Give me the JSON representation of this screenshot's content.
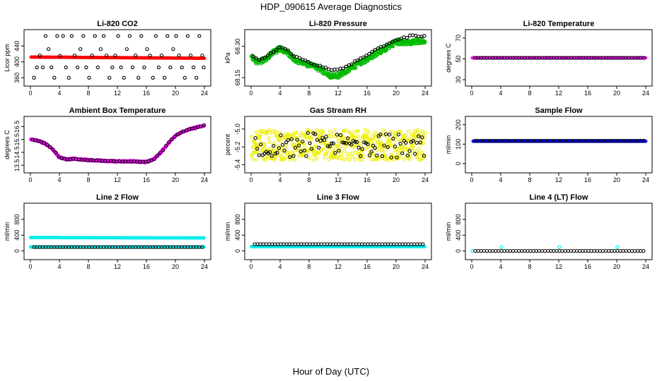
{
  "figure": {
    "title": "HDP_090615  Average Diagnostics",
    "xlabel": "Hour of Day (UTC)"
  },
  "chart_data": [
    {
      "type": "scatter",
      "title": "Li-820 CO2",
      "ylabel": "Licor ppm",
      "xlim": [
        0,
        24
      ],
      "ylim": [
        355,
        465
      ],
      "xticks": [
        0,
        4,
        8,
        12,
        16,
        20,
        24
      ],
      "xtick_labels": [
        "0",
        "4",
        "8",
        "12",
        "16",
        "20",
        "24"
      ],
      "yticks": [
        360,
        400,
        440
      ],
      "ytick_labels": [
        "360",
        "400",
        "440"
      ],
      "series": [
        {
          "name": "red",
          "color": "#ff0000",
          "filled": true,
          "kind": "linear",
          "x0": 0.1,
          "x1": 24,
          "step": 0.1,
          "y0": 412,
          "y1": 409
        },
        {
          "name": "black",
          "color": "#000000",
          "filled": false,
          "points": [
            [
              0.5,
              360
            ],
            [
              0.9,
              386
            ],
            [
              1.3,
              416
            ],
            [
              1.7,
              386
            ],
            [
              2.1,
              465
            ],
            [
              2.5,
              432
            ],
            [
              2.9,
              386
            ],
            [
              3.3,
              360
            ],
            [
              3.7,
              465
            ],
            [
              4.1,
              415
            ],
            [
              4.5,
              465
            ],
            [
              4.9,
              386
            ],
            [
              5.3,
              360
            ],
            [
              5.7,
              465
            ],
            [
              6.1,
              416
            ],
            [
              6.5,
              386
            ],
            [
              6.9,
              432
            ],
            [
              7.3,
              465
            ],
            [
              7.7,
              386
            ],
            [
              8.1,
              360
            ],
            [
              8.5,
              416
            ],
            [
              8.9,
              465
            ],
            [
              9.3,
              386
            ],
            [
              9.7,
              432
            ],
            [
              10.1,
              465
            ],
            [
              10.5,
              416
            ],
            [
              10.9,
              360
            ],
            [
              11.3,
              386
            ],
            [
              11.7,
              416
            ],
            [
              12.1,
              465
            ],
            [
              12.5,
              386
            ],
            [
              12.9,
              360
            ],
            [
              13.3,
              432
            ],
            [
              13.7,
              465
            ],
            [
              14.1,
              386
            ],
            [
              14.5,
              416
            ],
            [
              14.9,
              360
            ],
            [
              15.3,
              465
            ],
            [
              15.7,
              386
            ],
            [
              16.1,
              432
            ],
            [
              16.5,
              416
            ],
            [
              16.9,
              360
            ],
            [
              17.3,
              465
            ],
            [
              17.7,
              386
            ],
            [
              18.1,
              416
            ],
            [
              18.5,
              360
            ],
            [
              18.9,
              465
            ],
            [
              19.3,
              386
            ],
            [
              19.7,
              432
            ],
            [
              20.1,
              465
            ],
            [
              20.5,
              416
            ],
            [
              20.9,
              386
            ],
            [
              21.3,
              360
            ],
            [
              21.7,
              465
            ],
            [
              22.1,
              416
            ],
            [
              22.5,
              386
            ],
            [
              22.9,
              360
            ],
            [
              23.3,
              465
            ],
            [
              23.7,
              416
            ],
            [
              23.9,
              386
            ]
          ]
        }
      ]
    },
    {
      "type": "scatter",
      "title": "Li-820 Pressure",
      "ylabel": "kPa",
      "xlim": [
        0,
        24
      ],
      "ylim": [
        68.14,
        68.35
      ],
      "xticks": [
        0,
        4,
        8,
        12,
        16,
        20,
        24
      ],
      "xtick_labels": [
        "0",
        "4",
        "8",
        "12",
        "16",
        "20",
        "24"
      ],
      "yticks": [
        68.15,
        68.3
      ],
      "ytick_labels": [
        "68.15",
        "68.30"
      ],
      "series": [
        {
          "name": "green",
          "color": "#00bb00",
          "filled": false,
          "kind": "curve",
          "x0": 0.05,
          "x1": 24,
          "step": 0.05,
          "jitter": 0.012,
          "knots": [
            [
              0,
              68.25
            ],
            [
              1,
              68.22
            ],
            [
              2,
              68.24
            ],
            [
              3,
              68.27
            ],
            [
              4,
              68.29
            ],
            [
              5,
              68.27
            ],
            [
              6,
              68.24
            ],
            [
              7,
              68.22
            ],
            [
              8,
              68.21
            ],
            [
              9,
              68.2
            ],
            [
              10,
              68.18
            ],
            [
              11,
              68.16
            ],
            [
              12,
              68.16
            ],
            [
              13,
              68.18
            ],
            [
              14,
              68.2
            ],
            [
              15,
              68.22
            ],
            [
              16,
              68.24
            ],
            [
              17,
              68.26
            ],
            [
              18,
              68.28
            ],
            [
              19,
              68.3
            ],
            [
              20,
              68.32
            ],
            [
              22,
              68.32
            ],
            [
              24,
              68.33
            ]
          ]
        },
        {
          "name": "black",
          "color": "#000000",
          "filled": false,
          "kind": "curve",
          "x0": 0.3,
          "x1": 24,
          "step": 0.4,
          "jitter": 0.004,
          "knots": [
            [
              0,
              68.26
            ],
            [
              1,
              68.23
            ],
            [
              2,
              68.25
            ],
            [
              3,
              68.27
            ],
            [
              4,
              68.3
            ],
            [
              5,
              68.28
            ],
            [
              6,
              68.25
            ],
            [
              7,
              68.24
            ],
            [
              8,
              68.22
            ],
            [
              9,
              68.21
            ],
            [
              10,
              68.2
            ],
            [
              11,
              68.19
            ],
            [
              12,
              68.19
            ],
            [
              13,
              68.2
            ],
            [
              14,
              68.22
            ],
            [
              15,
              68.24
            ],
            [
              16,
              68.26
            ],
            [
              17,
              68.28
            ],
            [
              18,
              68.3
            ],
            [
              19,
              68.31
            ],
            [
              20,
              68.33
            ],
            [
              22,
              68.35
            ],
            [
              24,
              68.35
            ]
          ]
        }
      ]
    },
    {
      "type": "scatter",
      "title": "Li-820 Temperature",
      "ylabel": "degrees C",
      "xlim": [
        0,
        24
      ],
      "ylim": [
        30,
        72
      ],
      "xticks": [
        0,
        4,
        8,
        12,
        16,
        20,
        24
      ],
      "xtick_labels": [
        "0",
        "4",
        "8",
        "12",
        "16",
        "20",
        "24"
      ],
      "yticks": [
        30,
        50,
        70
      ],
      "ytick_labels": [
        "30",
        "50",
        "70"
      ],
      "series": [
        {
          "name": "magenta",
          "color": "#ff00ff",
          "filled": true,
          "kind": "linear",
          "x0": 0.1,
          "x1": 24,
          "step": 0.1,
          "y0": 51,
          "y1": 51
        },
        {
          "name": "black",
          "color": "#000000",
          "filled": false,
          "kind": "linear",
          "x0": 0.5,
          "x1": 24,
          "step": 0.4,
          "y0": 51,
          "y1": 51
        }
      ]
    },
    {
      "type": "scatter",
      "title": "Ambient Box Temperature",
      "ylabel": "degrees C",
      "xlim": [
        0,
        24
      ],
      "ylim": [
        13.4,
        16.8
      ],
      "xticks": [
        0,
        4,
        8,
        12,
        16,
        20,
        24
      ],
      "xtick_labels": [
        "0",
        "4",
        "8",
        "12",
        "16",
        "20",
        "24"
      ],
      "yticks": [
        13.5,
        14.5,
        15.5,
        16.5
      ],
      "ytick_labels": [
        "13.5",
        "14.5",
        "15.5",
        "16.5"
      ],
      "series": [
        {
          "name": "magenta",
          "color": "#ff00ff",
          "filled": true,
          "kind": "curve",
          "x0": 0.05,
          "x1": 24,
          "step": 0.05,
          "jitter": 0.06,
          "knots": [
            [
              0,
              15.5
            ],
            [
              1,
              15.4
            ],
            [
              2,
              15.2
            ],
            [
              3,
              14.8
            ],
            [
              4,
              14.1
            ],
            [
              5,
              13.95
            ],
            [
              6,
              14.0
            ],
            [
              8,
              13.9
            ],
            [
              10,
              13.85
            ],
            [
              12,
              13.8
            ],
            [
              14,
              13.8
            ],
            [
              16,
              13.75
            ],
            [
              17,
              13.95
            ],
            [
              18,
              14.5
            ],
            [
              19,
              15.2
            ],
            [
              20,
              15.8
            ],
            [
              21,
              16.1
            ],
            [
              22,
              16.3
            ],
            [
              23,
              16.45
            ],
            [
              24,
              16.6
            ]
          ]
        },
        {
          "name": "black",
          "color": "#000000",
          "filled": false,
          "kind": "curve",
          "x0": 0.3,
          "x1": 24,
          "step": 0.4,
          "jitter": 0.03,
          "knots": [
            [
              0,
              15.5
            ],
            [
              1,
              15.4
            ],
            [
              2,
              15.2
            ],
            [
              3,
              14.8
            ],
            [
              4,
              14.1
            ],
            [
              5,
              13.95
            ],
            [
              6,
              14.0
            ],
            [
              8,
              13.9
            ],
            [
              10,
              13.85
            ],
            [
              12,
              13.8
            ],
            [
              14,
              13.8
            ],
            [
              16,
              13.75
            ],
            [
              17,
              13.95
            ],
            [
              18,
              14.5
            ],
            [
              19,
              15.2
            ],
            [
              20,
              15.8
            ],
            [
              21,
              16.1
            ],
            [
              22,
              16.3
            ],
            [
              23,
              16.45
            ],
            [
              24,
              16.6
            ]
          ]
        }
      ]
    },
    {
      "type": "scatter",
      "title": "Gas Stream RH",
      "ylabel": "percent",
      "xlim": [
        0,
        24
      ],
      "ylim": [
        -5.42,
        -4.93
      ],
      "xticks": [
        0,
        4,
        8,
        12,
        16,
        20,
        24
      ],
      "xtick_labels": [
        "0",
        "4",
        "8",
        "12",
        "16",
        "20",
        "24"
      ],
      "yticks": [
        -5.4,
        -5.2,
        -5.0
      ],
      "ytick_labels": [
        "-5.4",
        "-5.2",
        "-5.0"
      ],
      "series": [
        {
          "name": "yellow",
          "color": "#eeee00",
          "filled": false,
          "kind": "noise",
          "x0": 0.05,
          "x1": 24,
          "step": 0.05,
          "center": -5.18,
          "spread": 0.17
        },
        {
          "name": "black",
          "color": "#000000",
          "filled": false,
          "kind": "noise",
          "x0": 0.6,
          "x1": 24,
          "step": 0.25,
          "center": -5.18,
          "spread": 0.14
        }
      ]
    },
    {
      "type": "scatter",
      "title": "Sample Flow",
      "ylabel": "ml/min",
      "xlim": [
        0,
        24
      ],
      "ylim": [
        -15,
        210
      ],
      "xticks": [
        0,
        4,
        8,
        12,
        16,
        20,
        24
      ],
      "xtick_labels": [
        "0",
        "4",
        "8",
        "12",
        "16",
        "20",
        "24"
      ],
      "yticks": [
        0,
        100,
        200
      ],
      "ytick_labels": [
        "0",
        "100",
        "200"
      ],
      "series": [
        {
          "name": "blue",
          "color": "#0000ff",
          "filled": true,
          "kind": "linear",
          "x0": 0.2,
          "x1": 24,
          "step": 0.1,
          "y0": 115,
          "y1": 115
        },
        {
          "name": "black",
          "color": "#000000",
          "filled": false,
          "kind": "linear",
          "x0": 0.5,
          "x1": 24,
          "step": 0.4,
          "y0": 118,
          "y1": 118
        }
      ]
    },
    {
      "type": "scatter",
      "title": "Line 2 Flow",
      "ylabel": "ml/min",
      "xlim": [
        0,
        24
      ],
      "ylim": [
        -60,
        1050
      ],
      "xticks": [
        0,
        4,
        8,
        12,
        16,
        20,
        24
      ],
      "xtick_labels": [
        "0",
        "4",
        "8",
        "12",
        "16",
        "20",
        "24"
      ],
      "yticks": [
        0,
        400,
        800
      ],
      "ytick_labels": [
        "0",
        "400",
        "800"
      ],
      "series": [
        {
          "name": "cyan-high",
          "color": "#00eeee",
          "filled": true,
          "kind": "linear",
          "x0": 0.05,
          "x1": 24,
          "step": 0.1,
          "y0": 340,
          "y1": 330
        },
        {
          "name": "cyan-low",
          "color": "#00eeee",
          "filled": true,
          "kind": "linear",
          "x0": 0.05,
          "x1": 24,
          "step": 0.1,
          "y0": 100,
          "y1": 100
        },
        {
          "name": "black",
          "color": "#000000",
          "filled": false,
          "kind": "linear",
          "x0": 0.5,
          "x1": 24,
          "step": 0.4,
          "y0": 100,
          "y1": 100
        }
      ]
    },
    {
      "type": "scatter",
      "title": "Line 3 Flow",
      "ylabel": "ml/min",
      "xlim": [
        0,
        24
      ],
      "ylim": [
        -60,
        1050
      ],
      "xticks": [
        0,
        4,
        8,
        12,
        16,
        20,
        24
      ],
      "xtick_labels": [
        "0",
        "4",
        "8",
        "12",
        "16",
        "20",
        "24"
      ],
      "yticks": [
        0,
        400,
        800
      ],
      "ytick_labels": [
        "0",
        "400",
        "800"
      ],
      "series": [
        {
          "name": "cyan",
          "color": "#00eeee",
          "filled": true,
          "kind": "linear",
          "x0": 0.05,
          "x1": 24,
          "step": 0.1,
          "y0": 110,
          "y1": 110
        },
        {
          "name": "black",
          "color": "#000000",
          "filled": false,
          "kind": "linear",
          "x0": 0.5,
          "x1": 24,
          "step": 0.4,
          "y0": 170,
          "y1": 170
        }
      ]
    },
    {
      "type": "scatter",
      "title": "Line 4 (LT) Flow",
      "ylabel": "ml/min",
      "xlim": [
        0,
        24
      ],
      "ylim": [
        -60,
        1050
      ],
      "xticks": [
        0,
        4,
        8,
        12,
        16,
        20,
        24
      ],
      "xtick_labels": [
        "0",
        "4",
        "8",
        "12",
        "16",
        "20",
        "24"
      ],
      "yticks": [
        0,
        400,
        800
      ],
      "ytick_labels": [
        "0",
        "400",
        "800"
      ],
      "series": [
        {
          "name": "cyan",
          "color": "#00eeee",
          "filled": false,
          "points": [
            [
              0.1,
              0
            ],
            [
              4.1,
              100
            ],
            [
              12.1,
              100
            ],
            [
              20.1,
              100
            ]
          ]
        },
        {
          "name": "black",
          "color": "#000000",
          "filled": false,
          "kind": "linear",
          "x0": 0.5,
          "x1": 24,
          "step": 0.4,
          "y0": 0,
          "y1": 0
        }
      ]
    }
  ]
}
